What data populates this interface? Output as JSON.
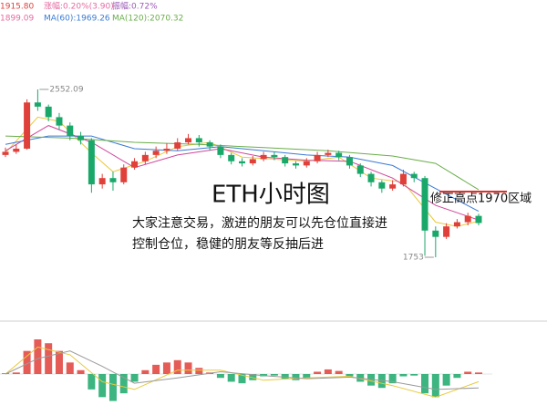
{
  "chart_data": {
    "type": "candlestick",
    "header": [
      {
        "text": "1915.80",
        "color": "#e0403a"
      },
      {
        "text": "涨幅:0.20%(3.90)",
        "color": "#e56aa0"
      },
      {
        "text": "振幅:0.72%",
        "color": "#9b59b6"
      },
      {
        "text": "1899.09",
        "color": "#e56aa0"
      },
      {
        "text": "MA(60):1969.26",
        "color": "#3a7bd5"
      },
      {
        "text": "MA(120):2070.32",
        "color": "#6aae4a"
      }
    ],
    "title": "ETH小时图",
    "annotations": [
      "大家注意交易，激进的朋友可以先仓位直接进",
      "控制仓位，稳健的朋友等反抽后进",
      "修正高点1970区域"
    ],
    "up_color": "#e0403a",
    "down_color": "#1aa86a",
    "open": [
      2240,
      2255,
      2270,
      2490,
      2470,
      2420,
      2380,
      2330,
      2310,
      2100,
      2130,
      2110,
      2180,
      2210,
      2240,
      2260,
      2270,
      2300,
      2320,
      2300,
      2280,
      2240,
      2210,
      2200,
      2220,
      2240,
      2230,
      2200,
      2190,
      2210,
      2240,
      2250,
      2230,
      2190,
      2150,
      2110,
      2080,
      2100,
      2150,
      2130,
      1880,
      1850,
      1900,
      1920,
      1950
    ],
    "high": [
      2275,
      2290,
      2505,
      2552.09,
      2480,
      2440,
      2395,
      2350,
      2320,
      2150,
      2160,
      2195,
      2225,
      2255,
      2280,
      2295,
      2320,
      2340,
      2335,
      2310,
      2290,
      2250,
      2225,
      2235,
      2255,
      2255,
      2240,
      2210,
      2225,
      2255,
      2265,
      2260,
      2240,
      2200,
      2160,
      2120,
      2120,
      2170,
      2160,
      2140,
      1900,
      1915,
      1935,
      1965,
      1960
    ],
    "low": [
      2230,
      2245,
      2265,
      2450,
      2400,
      2360,
      2310,
      2290,
      2060,
      2080,
      2070,
      2100,
      2170,
      2195,
      2225,
      2245,
      2260,
      2290,
      2280,
      2260,
      2225,
      2195,
      2185,
      2190,
      2210,
      2215,
      2185,
      2175,
      2180,
      2200,
      2230,
      2215,
      2175,
      2135,
      2090,
      2060,
      2070,
      2090,
      2110,
      1760,
      1753,
      1840,
      1890,
      1905,
      1905
    ],
    "close": [
      2255,
      2270,
      2490,
      2470,
      2420,
      2380,
      2330,
      2310,
      2100,
      2130,
      2110,
      2180,
      2210,
      2240,
      2260,
      2270,
      2300,
      2320,
      2300,
      2280,
      2240,
      2210,
      2200,
      2220,
      2240,
      2230,
      2200,
      2190,
      2210,
      2240,
      2250,
      2230,
      2190,
      2150,
      2110,
      2080,
      2100,
      2150,
      2130,
      1880,
      1850,
      1900,
      1920,
      1950,
      1916
    ],
    "ma_lines": [
      {
        "color": "#e8c93a",
        "x": [
          0,
          3,
          5,
          8,
          10,
          13,
          16,
          19,
          22,
          25,
          28,
          31,
          34,
          37,
          40,
          42,
          44
        ],
        "values": [
          2250,
          2420,
          2400,
          2250,
          2160,
          2210,
          2280,
          2300,
          2230,
          2220,
          2210,
          2230,
          2130,
          2110,
          1920,
          1900,
          1925
        ]
      },
      {
        "color": "#d0459a",
        "x": [
          0,
          4,
          8,
          12,
          16,
          20,
          24,
          28,
          32,
          36,
          40,
          44
        ],
        "values": [
          2260,
          2380,
          2300,
          2180,
          2240,
          2270,
          2230,
          2215,
          2210,
          2130,
          2000,
          1930
        ]
      },
      {
        "color": "#3a7bd5",
        "x": [
          0,
          4,
          8,
          12,
          16,
          20,
          24,
          28,
          32,
          36,
          40,
          44
        ],
        "values": [
          2290,
          2330,
          2330,
          2270,
          2260,
          2280,
          2260,
          2240,
          2230,
          2190,
          2080,
          1972
        ]
      },
      {
        "color": "#6aae4a",
        "x": [
          0,
          6,
          12,
          18,
          24,
          30,
          36,
          40,
          44
        ],
        "values": [
          2330,
          2320,
          2300,
          2290,
          2275,
          2260,
          2235,
          2200,
          2075
        ]
      }
    ],
    "macd_hist": [
      1,
      2,
      30,
      45,
      40,
      30,
      15,
      5,
      -20,
      -30,
      -35,
      -25,
      -10,
      5,
      12,
      15,
      18,
      15,
      8,
      2,
      -5,
      -10,
      -12,
      -8,
      -3,
      -2,
      -6,
      -8,
      -5,
      3,
      6,
      4,
      -3,
      -10,
      -15,
      -18,
      -12,
      -3,
      -2,
      -25,
      -30,
      -15,
      -5,
      3,
      2
    ],
    "macd_lines": [
      {
        "color": "#e8c93a",
        "x": [
          0,
          3,
          6,
          9,
          12,
          16,
          20,
          24,
          28,
          32,
          36,
          40,
          44
        ],
        "values": [
          0,
          35,
          25,
          -10,
          -20,
          5,
          5,
          -8,
          -5,
          -3,
          -15,
          -30,
          -10
        ]
      },
      {
        "color": "#9a9a9a",
        "x": [
          0,
          3,
          6,
          9,
          12,
          16,
          20,
          24,
          28,
          32,
          36,
          40,
          44
        ],
        "values": [
          0,
          20,
          30,
          10,
          -12,
          -5,
          3,
          -2,
          -6,
          -4,
          -10,
          -20,
          -18
        ]
      }
    ]
  }
}
